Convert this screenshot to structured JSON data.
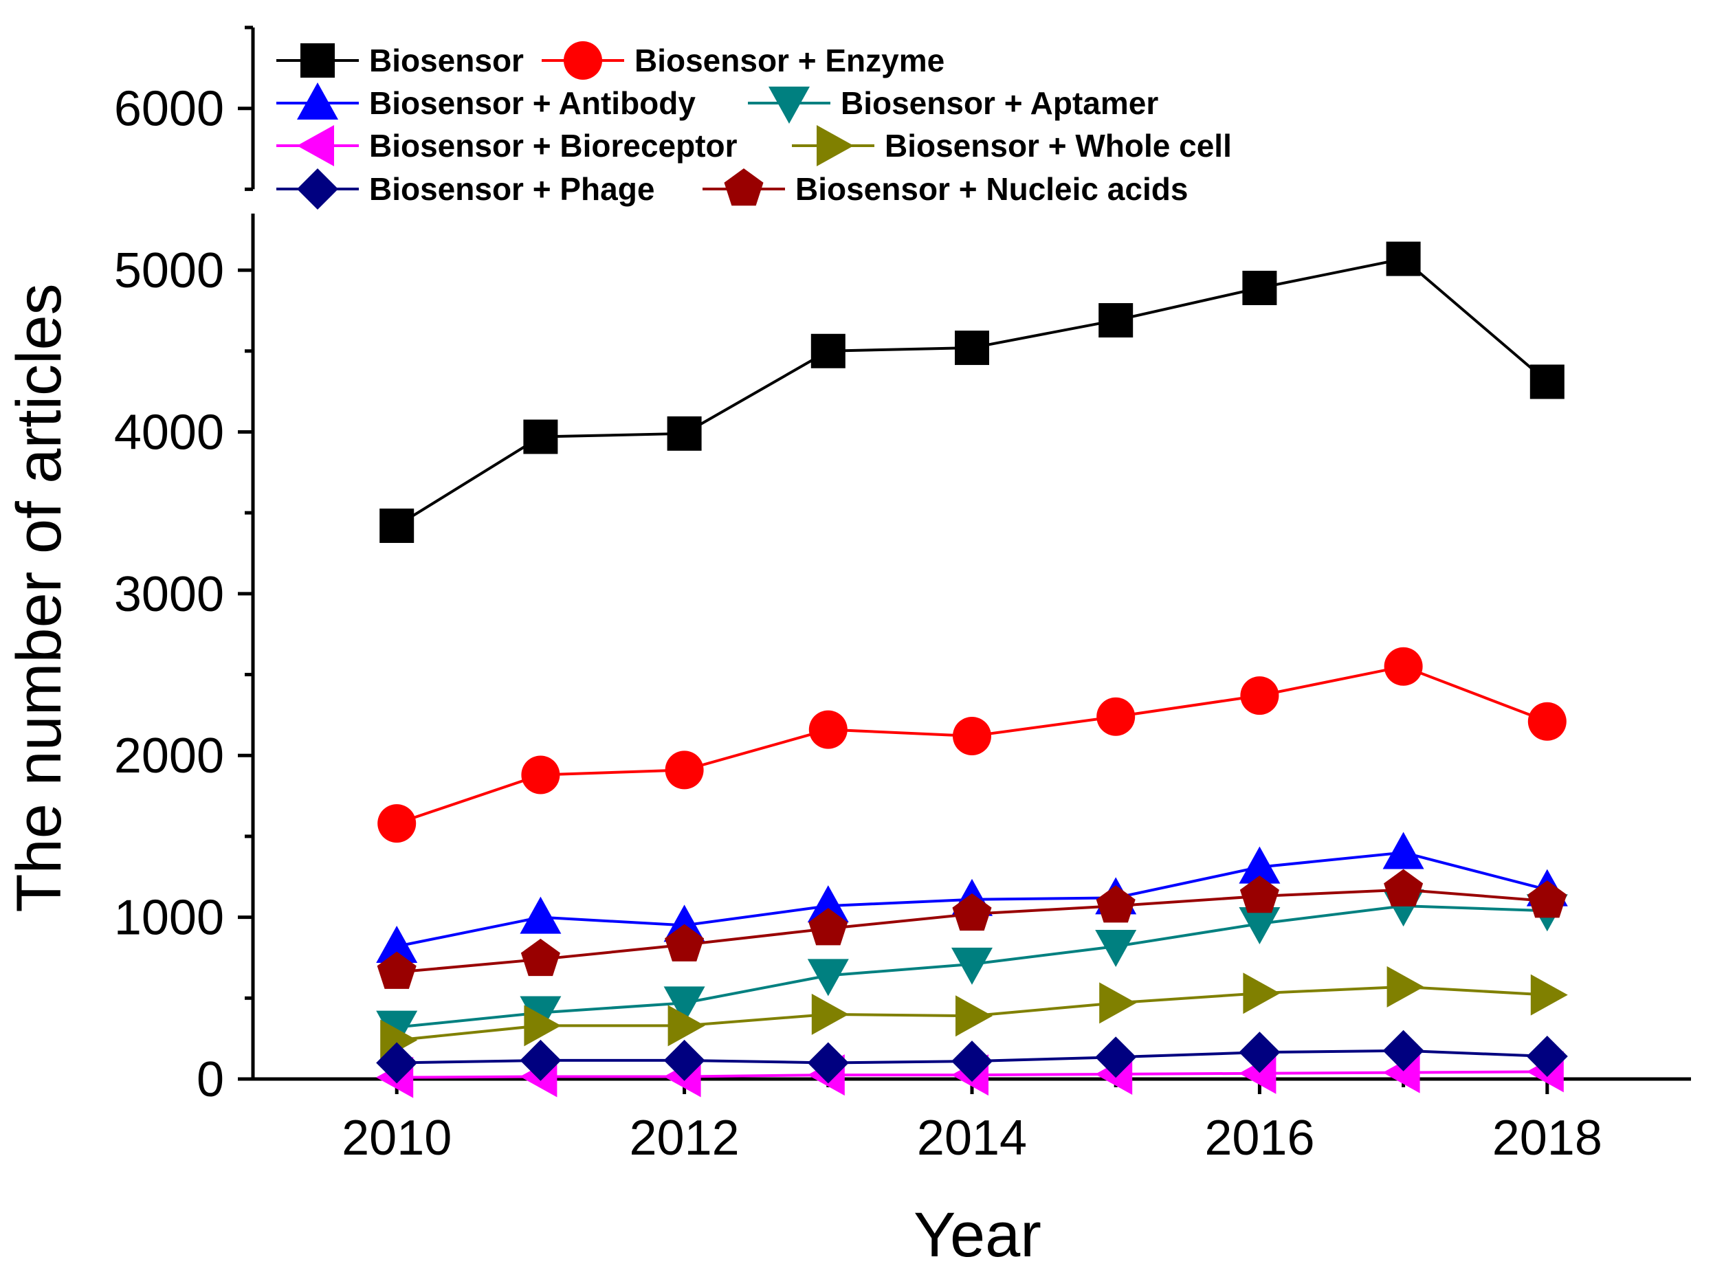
{
  "chart_data": {
    "type": "line",
    "title": "",
    "xlabel": "Year",
    "ylabel": "The number of articles",
    "xlim": [
      2009,
      2019
    ],
    "ylim": [
      0,
      6500
    ],
    "x_ticks": [
      2010,
      2012,
      2014,
      2016,
      2018
    ],
    "y_ticks": [
      0,
      1000,
      2000,
      3000,
      4000,
      5000,
      6000
    ],
    "y_axis_break": [
      5350,
      5500
    ],
    "grid": false,
    "legend_position": "top-left",
    "x": [
      2010,
      2011,
      2012,
      2013,
      2014,
      2015,
      2016,
      2017,
      2018
    ],
    "series": [
      {
        "name": "Biosensor",
        "color": "#000000",
        "marker": "square",
        "values": [
          3420,
          3970,
          3990,
          4500,
          4520,
          4690,
          4890,
          5070,
          4310
        ]
      },
      {
        "name": "Biosensor + Enzyme",
        "color": "#ff0000",
        "marker": "circle",
        "values": [
          1580,
          1880,
          1910,
          2160,
          2120,
          2240,
          2370,
          2550,
          2210
        ]
      },
      {
        "name": "Biosensor + Antibody",
        "color": "#0000ff",
        "marker": "triangle-up",
        "values": [
          820,
          1000,
          950,
          1070,
          1110,
          1120,
          1310,
          1400,
          1170
        ]
      },
      {
        "name": "Biosensor + Aptamer",
        "color": "#008080",
        "marker": "triangle-down",
        "values": [
          320,
          410,
          470,
          640,
          710,
          820,
          960,
          1070,
          1040
        ]
      },
      {
        "name": "Biosensor + Bioreceptor",
        "color": "#ff00ff",
        "marker": "triangle-left",
        "values": [
          10,
          15,
          15,
          25,
          25,
          30,
          35,
          40,
          45
        ]
      },
      {
        "name": "Biosensor + Whole cell",
        "color": "#808000",
        "marker": "triangle-right",
        "values": [
          240,
          330,
          330,
          400,
          390,
          470,
          530,
          570,
          520
        ]
      },
      {
        "name": "Biosensor + Phage",
        "color": "#000080",
        "marker": "diamond",
        "values": [
          100,
          115,
          115,
          100,
          110,
          135,
          165,
          175,
          140
        ]
      },
      {
        "name": "Biosensor + Nucleic acids",
        "color": "#990000",
        "marker": "pentagon",
        "values": [
          660,
          740,
          830,
          930,
          1020,
          1070,
          1130,
          1170,
          1100
        ]
      }
    ]
  }
}
